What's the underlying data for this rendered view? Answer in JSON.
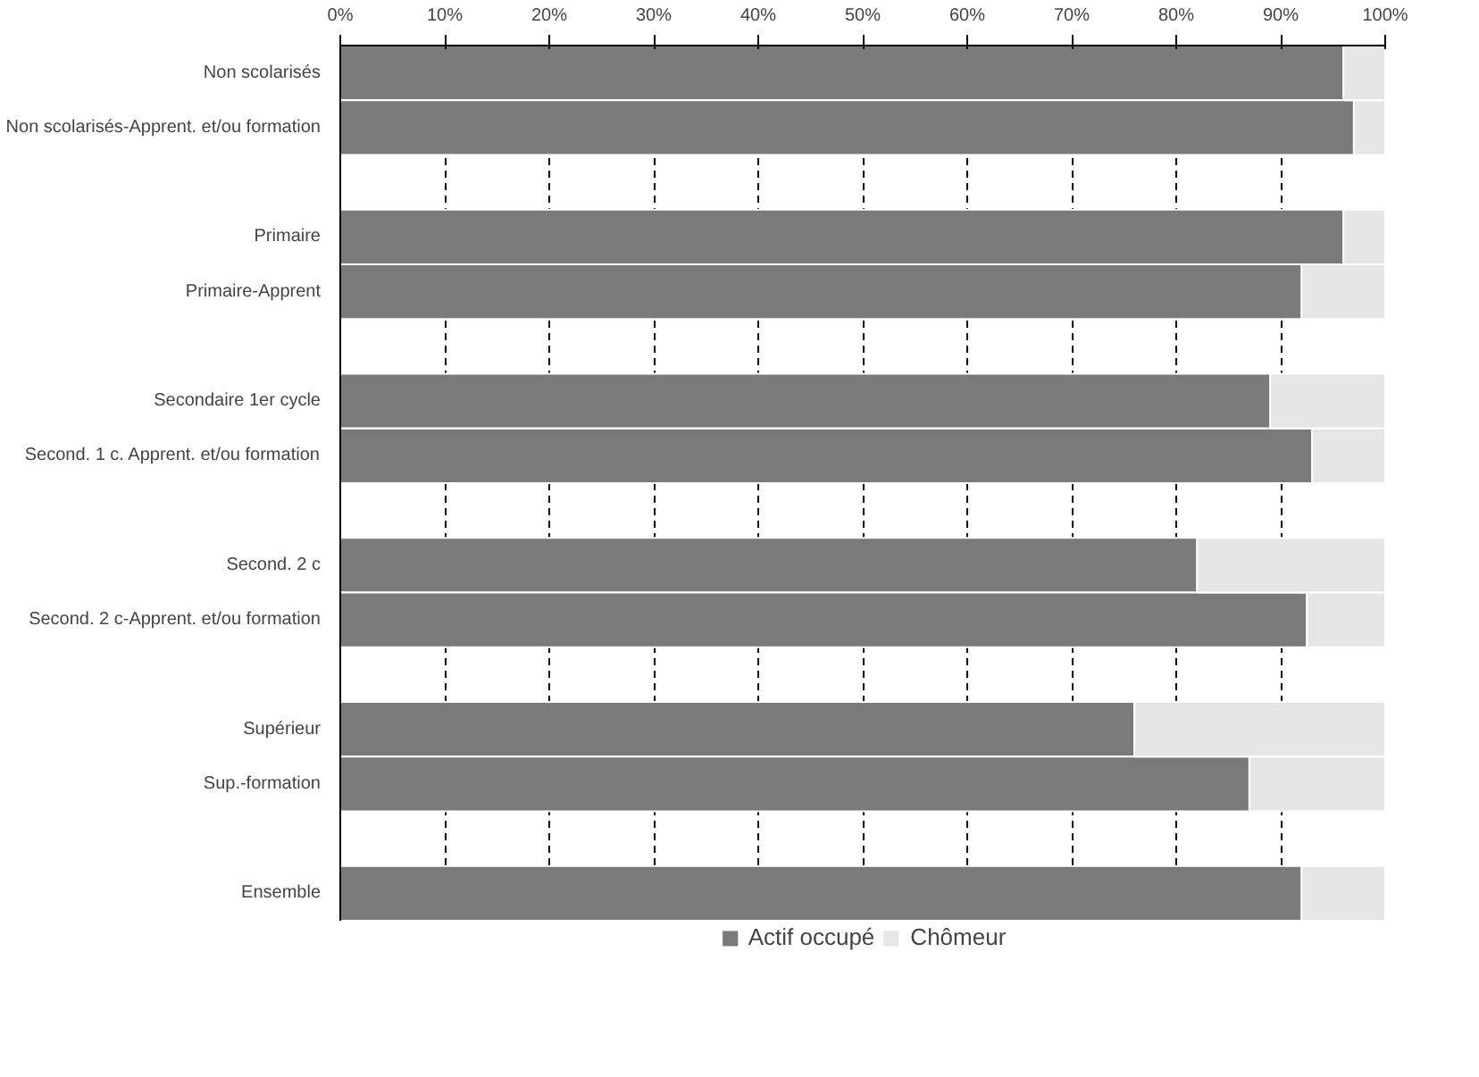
{
  "chart_data": {
    "type": "bar",
    "orientation": "horizontal",
    "stacked": true,
    "categories": [
      "Non scolarisés",
      "Non scolarisés-Apprent. et/ou formation",
      null,
      "Primaire",
      "Primaire-Apprent",
      null,
      "Secondaire 1er cycle",
      "Second. 1 c. Apprent. et/ou formation",
      null,
      "Second. 2 c",
      "Second. 2 c-Apprent. et/ou formation",
      null,
      "Supérieur",
      "Sup.-formation",
      null,
      "Ensemble"
    ],
    "series": [
      {
        "name": "Actif occupé",
        "color": "#7a7a7a",
        "values": [
          96,
          97,
          null,
          96,
          92,
          null,
          89,
          93,
          null,
          82,
          92.5,
          null,
          76,
          87,
          null,
          92
        ]
      },
      {
        "name": "Chômeur",
        "color": "#e6e6e6",
        "values": [
          4,
          3,
          null,
          4,
          8,
          null,
          11,
          7,
          null,
          18,
          7.5,
          null,
          24,
          13,
          null,
          8
        ]
      }
    ],
    "xlim": [
      0,
      100
    ],
    "xticks": [
      {
        "value": 0,
        "label": "0%"
      },
      {
        "value": 10,
        "label": "10%"
      },
      {
        "value": 20,
        "label": "20%"
      },
      {
        "value": 30,
        "label": "30%"
      },
      {
        "value": 40,
        "label": "40%"
      },
      {
        "value": 50,
        "label": "50%"
      },
      {
        "value": 60,
        "label": "60%"
      },
      {
        "value": 70,
        "label": "70%"
      },
      {
        "value": 80,
        "label": "80%"
      },
      {
        "value": 90,
        "label": "90%"
      },
      {
        "value": 100,
        "label": "100%"
      }
    ],
    "grid": "x",
    "legend": "bottom"
  }
}
